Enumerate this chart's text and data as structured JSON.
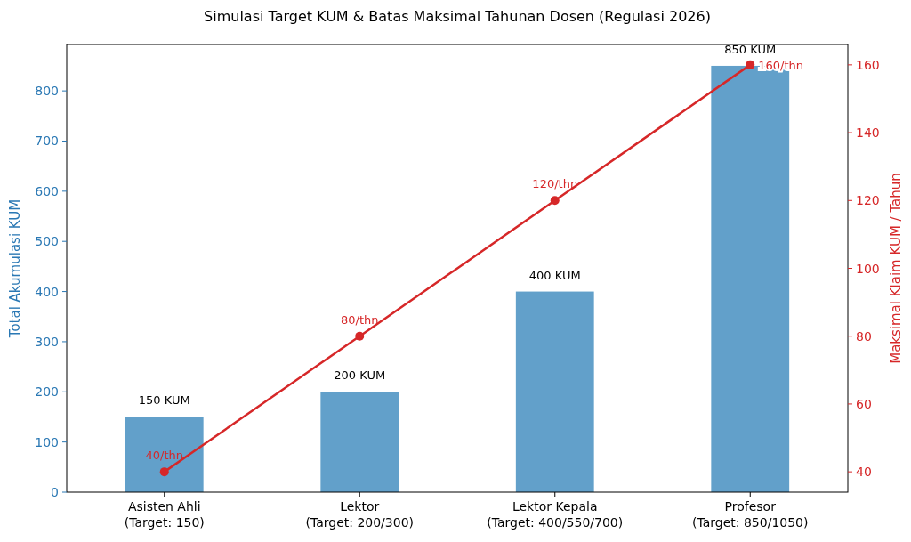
{
  "chart_data": {
    "type": "bar",
    "title": "Simulasi Target KUM & Batas Maksimal Tahunan Dosen (Regulasi 2026)",
    "categories": [
      "Asisten Ahli\n(Target: 150)",
      "Lektor\n(Target: 200/300)",
      "Lektor Kepala\n(Target: 400/550/700)",
      "Profesor\n(Target: 850/1050)"
    ],
    "ylabel": "Total Akumulasi KUM",
    "y2label": "Maksimal Klaim KUM / Tahun",
    "ylim": [
      0,
      892.5
    ],
    "yticks": [
      0,
      100,
      200,
      300,
      400,
      500,
      600,
      700,
      800
    ],
    "y2lim": [
      34,
      166
    ],
    "y2ticks": [
      40,
      60,
      80,
      100,
      120,
      140,
      160
    ],
    "series": [
      {
        "color": "#62a0ca",
        "values": [
          150,
          200,
          400,
          850
        ],
        "value_labels": [
          "150 KUM",
          "200 KUM",
          "400 KUM",
          "850 KUM"
        ]
      },
      {
        "type": "line",
        "axis": "y2",
        "color": "#d62728",
        "values": [
          40,
          80,
          120,
          160
        ],
        "value_labels": [
          "40/thn",
          "80/thn",
          "120/thn",
          "160/thn"
        ]
      }
    ],
    "marker": "circle",
    "grid": false
  }
}
